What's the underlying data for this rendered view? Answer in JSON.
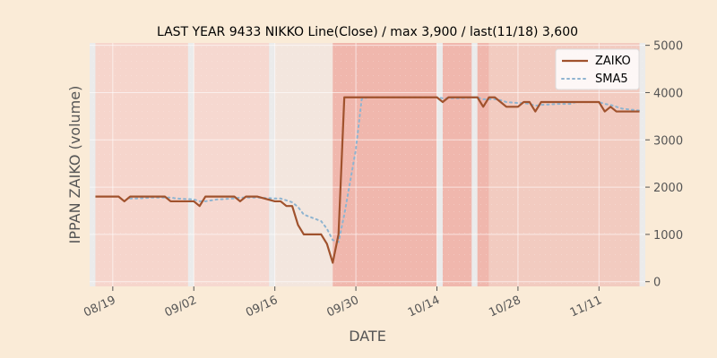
{
  "chart_data": {
    "type": "line",
    "title": "LAST YEAR 9433 NIKKO Line(Close) / max 3,900 / last(11/18) 3,600",
    "xlabel": "DATE",
    "ylabel": "IPPAN ZAIKO (volume)",
    "y_axis_side": "right",
    "ylim": [
      -100,
      5050
    ],
    "y_ticks": [
      0,
      1000,
      2000,
      3000,
      4000,
      5000
    ],
    "y_tick_labels": [
      "0",
      "1000",
      "2000",
      "3000",
      "4000",
      "5000"
    ],
    "xlim": [
      "2024-08-15",
      "2024-11-19"
    ],
    "x_ticks": [
      "2024-08-19",
      "2024-09-02",
      "2024-09-16",
      "2024-09-30",
      "2024-10-14",
      "2024-10-28",
      "2024-11-11"
    ],
    "x_tick_labels": [
      "08/19",
      "09/02",
      "09/16",
      "09/30",
      "10/14",
      "10/28",
      "11/11"
    ],
    "grid": true,
    "legend_position": "top-right",
    "background_color": "#faebd7",
    "plot_background_color": "#ebebeb",
    "colors": {
      "zaiko": "#a0522d",
      "sma5": "#8fb4d0"
    },
    "background_bands": [
      {
        "start": "2024-08-16",
        "end": "2024-09-01",
        "color": "#f6d5cc"
      },
      {
        "start": "2024-09-02",
        "end": "2024-09-15",
        "color": "#f6d8d0"
      },
      {
        "start": "2024-09-16",
        "end": "2024-09-26",
        "color": "#f3e6de"
      },
      {
        "start": "2024-09-26",
        "end": "2024-10-14",
        "color": "#f0b7ad"
      },
      {
        "start": "2024-10-15",
        "end": "2024-10-20",
        "color": "#f0b7ad"
      },
      {
        "start": "2024-10-21",
        "end": "2024-10-23",
        "color": "#f0b7ad"
      },
      {
        "start": "2024-10-23",
        "end": "2024-11-18",
        "color": "#f2cbc0"
      }
    ],
    "series": [
      {
        "name": "ZAIKO",
        "points": [
          [
            "2024-08-16",
            1800
          ],
          [
            "2024-08-19",
            1800
          ],
          [
            "2024-08-20",
            1800
          ],
          [
            "2024-08-21",
            1700
          ],
          [
            "2024-08-22",
            1800
          ],
          [
            "2024-08-23",
            1800
          ],
          [
            "2024-08-26",
            1800
          ],
          [
            "2024-08-27",
            1800
          ],
          [
            "2024-08-28",
            1800
          ],
          [
            "2024-08-29",
            1700
          ],
          [
            "2024-08-30",
            1700
          ],
          [
            "2024-09-02",
            1700
          ],
          [
            "2024-09-03",
            1600
          ],
          [
            "2024-09-04",
            1800
          ],
          [
            "2024-09-05",
            1800
          ],
          [
            "2024-09-06",
            1800
          ],
          [
            "2024-09-09",
            1800
          ],
          [
            "2024-09-10",
            1700
          ],
          [
            "2024-09-11",
            1800
          ],
          [
            "2024-09-12",
            1800
          ],
          [
            "2024-09-13",
            1800
          ],
          [
            "2024-09-16",
            1700
          ],
          [
            "2024-09-17",
            1700
          ],
          [
            "2024-09-18",
            1600
          ],
          [
            "2024-09-19",
            1600
          ],
          [
            "2024-09-20",
            1200
          ],
          [
            "2024-09-21",
            1000
          ],
          [
            "2024-09-24",
            1000
          ],
          [
            "2024-09-25",
            800
          ],
          [
            "2024-09-26",
            400
          ],
          [
            "2024-09-27",
            1000
          ],
          [
            "2024-09-28",
            3900
          ],
          [
            "2024-09-30",
            3900
          ],
          [
            "2024-10-01",
            3900
          ],
          [
            "2024-10-02",
            3900
          ],
          [
            "2024-10-03",
            3900
          ],
          [
            "2024-10-04",
            3900
          ],
          [
            "2024-10-07",
            3900
          ],
          [
            "2024-10-08",
            3900
          ],
          [
            "2024-10-09",
            3900
          ],
          [
            "2024-10-10",
            3900
          ],
          [
            "2024-10-11",
            3900
          ],
          [
            "2024-10-14",
            3900
          ],
          [
            "2024-10-15",
            3800
          ],
          [
            "2024-10-16",
            3900
          ],
          [
            "2024-10-17",
            3900
          ],
          [
            "2024-10-18",
            3900
          ],
          [
            "2024-10-21",
            3900
          ],
          [
            "2024-10-22",
            3700
          ],
          [
            "2024-10-23",
            3900
          ],
          [
            "2024-10-24",
            3900
          ],
          [
            "2024-10-25",
            3800
          ],
          [
            "2024-10-26",
            3700
          ],
          [
            "2024-10-28",
            3700
          ],
          [
            "2024-10-29",
            3800
          ],
          [
            "2024-10-30",
            3800
          ],
          [
            "2024-10-31",
            3600
          ],
          [
            "2024-11-01",
            3800
          ],
          [
            "2024-11-04",
            3800
          ],
          [
            "2024-11-05",
            3800
          ],
          [
            "2024-11-06",
            3800
          ],
          [
            "2024-11-07",
            3800
          ],
          [
            "2024-11-08",
            3800
          ],
          [
            "2024-11-11",
            3800
          ],
          [
            "2024-11-12",
            3600
          ],
          [
            "2024-11-13",
            3700
          ],
          [
            "2024-11-14",
            3600
          ],
          [
            "2024-11-15",
            3600
          ],
          [
            "2024-11-18",
            3600
          ]
        ]
      },
      {
        "name": "SMA5",
        "points": [
          [
            "2024-08-22",
            1760
          ],
          [
            "2024-08-23",
            1760
          ],
          [
            "2024-08-26",
            1780
          ],
          [
            "2024-08-27",
            1780
          ],
          [
            "2024-08-28",
            1780
          ],
          [
            "2024-08-29",
            1780
          ],
          [
            "2024-08-30",
            1760
          ],
          [
            "2024-09-02",
            1740
          ],
          [
            "2024-09-03",
            1700
          ],
          [
            "2024-09-04",
            1700
          ],
          [
            "2024-09-05",
            1720
          ],
          [
            "2024-09-06",
            1740
          ],
          [
            "2024-09-09",
            1760
          ],
          [
            "2024-09-10",
            1780
          ],
          [
            "2024-09-11",
            1780
          ],
          [
            "2024-09-12",
            1780
          ],
          [
            "2024-09-13",
            1780
          ],
          [
            "2024-09-16",
            1760
          ],
          [
            "2024-09-17",
            1760
          ],
          [
            "2024-09-18",
            1720
          ],
          [
            "2024-09-19",
            1680
          ],
          [
            "2024-09-20",
            1580
          ],
          [
            "2024-09-21",
            1420
          ],
          [
            "2024-09-24",
            1280
          ],
          [
            "2024-09-25",
            1120
          ],
          [
            "2024-09-26",
            880
          ],
          [
            "2024-09-27",
            840
          ],
          [
            "2024-09-28",
            1420
          ],
          [
            "2024-09-30",
            2800
          ],
          [
            "2024-10-01",
            3860
          ],
          [
            "2024-10-02",
            3900
          ],
          [
            "2024-10-03",
            3900
          ],
          [
            "2024-10-04",
            3900
          ],
          [
            "2024-10-07",
            3900
          ],
          [
            "2024-10-08",
            3900
          ],
          [
            "2024-10-09",
            3900
          ],
          [
            "2024-10-10",
            3900
          ],
          [
            "2024-10-11",
            3900
          ],
          [
            "2024-10-14",
            3900
          ],
          [
            "2024-10-15",
            3880
          ],
          [
            "2024-10-16",
            3880
          ],
          [
            "2024-10-17",
            3880
          ],
          [
            "2024-10-18",
            3880
          ],
          [
            "2024-10-21",
            3900
          ],
          [
            "2024-10-22",
            3860
          ],
          [
            "2024-10-23",
            3860
          ],
          [
            "2024-10-24",
            3860
          ],
          [
            "2024-10-25",
            3840
          ],
          [
            "2024-10-26",
            3800
          ],
          [
            "2024-10-28",
            3780
          ],
          [
            "2024-10-29",
            3780
          ],
          [
            "2024-10-30",
            3760
          ],
          [
            "2024-10-31",
            3720
          ],
          [
            "2024-11-01",
            3740
          ],
          [
            "2024-11-04",
            3760
          ],
          [
            "2024-11-05",
            3760
          ],
          [
            "2024-11-06",
            3760
          ],
          [
            "2024-11-07",
            3800
          ],
          [
            "2024-11-08",
            3800
          ],
          [
            "2024-11-11",
            3800
          ],
          [
            "2024-11-12",
            3760
          ],
          [
            "2024-11-13",
            3740
          ],
          [
            "2024-11-14",
            3700
          ],
          [
            "2024-11-15",
            3660
          ],
          [
            "2024-11-18",
            3620
          ]
        ]
      }
    ]
  }
}
